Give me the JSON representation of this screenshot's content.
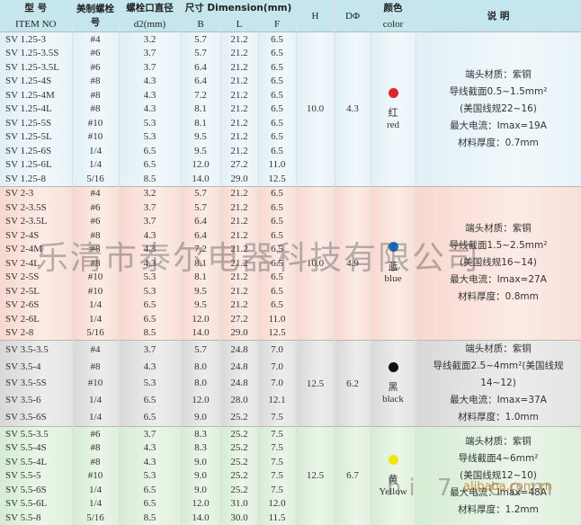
{
  "header": {
    "model_cn": "型 号",
    "model_en": "ITEM NO",
    "screw_cn": "美制螺栓 号",
    "bolt_cn": "螺栓口直径",
    "bolt_unit": "d2(mm)",
    "dim": "尺寸 Dimension(mm)",
    "col_b": "B",
    "col_l": "L",
    "col_f": "F",
    "col_h": "H",
    "col_d": "DΦ",
    "color_cn": "颜色",
    "color_en": "color",
    "desc": "说 明"
  },
  "groups": [
    {
      "rows": [
        [
          "SV 1.25-3",
          "#4",
          "3.2",
          "5.7",
          "21.2",
          "6.5"
        ],
        [
          "SV 1.25-3.5S",
          "#6",
          "3.7",
          "5.7",
          "21.2",
          "6.5"
        ],
        [
          "SV 1.25-3.5L",
          "#6",
          "3.7",
          "6.4",
          "21.2",
          "6.5"
        ],
        [
          "SV 1.25-4S",
          "#8",
          "4.3",
          "6.4",
          "21.2",
          "6.5"
        ],
        [
          "SV 1.25-4M",
          "#8",
          "4.3",
          "7.2",
          "21.2",
          "6.5"
        ],
        [
          "SV 1.25-4L",
          "#8",
          "4.3",
          "8.1",
          "21.2",
          "6.5"
        ],
        [
          "SV 1.25-5S",
          "#10",
          "5.3",
          "8.1",
          "21.2",
          "6.5"
        ],
        [
          "SV 1.25-5L",
          "#10",
          "5.3",
          "9.5",
          "21.2",
          "6.5"
        ],
        [
          "SV 1.25-6S",
          "1/4",
          "6.5",
          "9.5",
          "21.2",
          "6.5"
        ],
        [
          "SV 1.25-6L",
          "1/4",
          "6.5",
          "12.0",
          "27.2",
          "11.0"
        ],
        [
          "SV 1.25-8",
          "5/16",
          "8.5",
          "14.0",
          "29.0",
          "12.5"
        ]
      ],
      "h": "10.0",
      "d": "4.3",
      "color_cn": "红",
      "color_en": "red",
      "dot": "#e0262a",
      "desc": [
        "端头材质：紫铜",
        "导线截面0.5~1.5mm²",
        "(美国线规22~16)",
        "最大电流：Imax=19A",
        "材料厚度：0.7mm"
      ]
    },
    {
      "rows": [
        [
          "SV 2-3",
          "#4",
          "3.2",
          "5.7",
          "21.2",
          "6.5"
        ],
        [
          "SV 2-3.5S",
          "#6",
          "3.7",
          "5.7",
          "21.2",
          "6.5"
        ],
        [
          "SV 2-3.5L",
          "#6",
          "3.7",
          "6.4",
          "21.2",
          "6.5"
        ],
        [
          "SV 2-4S",
          "#8",
          "4.3",
          "6.4",
          "21.2",
          "6.5"
        ],
        [
          "SV 2-4M",
          "#8",
          "4.3",
          "7.2",
          "21.2",
          "6.5"
        ],
        [
          "SV 2-4L",
          "#8",
          "4.3",
          "8.1",
          "21.2",
          "6.5"
        ],
        [
          "SV 2-5S",
          "#10",
          "5.3",
          "8.1",
          "21.2",
          "6.5"
        ],
        [
          "SV 2-5L",
          "#10",
          "5.3",
          "9.5",
          "21.2",
          "6.5"
        ],
        [
          "SV 2-6S",
          "1/4",
          "6.5",
          "9.5",
          "21.2",
          "6.5"
        ],
        [
          "SV 2-6L",
          "1/4",
          "6.5",
          "12.0",
          "27.2",
          "11.0"
        ],
        [
          "SV 2-8",
          "5/16",
          "8.5",
          "14.0",
          "29.0",
          "12.5"
        ]
      ],
      "h": "10.0",
      "d": "4.9",
      "color_cn": "蓝",
      "color_en": "blue",
      "dot": "#1a6fc4",
      "desc": [
        "端头材质：紫铜",
        "导线截面1.5~2.5mm²",
        "(美国线规16~14)",
        "最大电流：Imax=27A",
        "材料厚度：0.8mm"
      ]
    },
    {
      "rows": [
        [
          "SV 3.5-3.5",
          "#4",
          "3.7",
          "5.7",
          "24.8",
          "7.0"
        ],
        [
          "SV 3.5-4",
          "#8",
          "4.3",
          "8.0",
          "24.8",
          "7.0"
        ],
        [
          "SV 3.5-5S",
          "#10",
          "5.3",
          "8.0",
          "24.8",
          "7.0"
        ],
        [
          "SV 3.5-6",
          "1/4",
          "6.5",
          "12.0",
          "28.0",
          "12.1"
        ],
        [
          "SV 3.5-6S",
          "1/4",
          "6.5",
          "9.0",
          "25.2",
          "7.5"
        ]
      ],
      "h": "12.5",
      "d": "6.2",
      "color_cn": "黑",
      "color_en": "black",
      "dot": "#111111",
      "desc": [
        "端头材质：紫铜",
        "导线截面2.5~4mm²(美国线规14~12)",
        "最大电流：Imax=37A",
        "材料厚度：1.0mm"
      ]
    },
    {
      "rows": [
        [
          "SV 5.5-3.5",
          "#6",
          "3.7",
          "8.3",
          "25.2",
          "7.5"
        ],
        [
          "SV 5.5-4S",
          "#8",
          "4.3",
          "8.3",
          "25.2",
          "7.5"
        ],
        [
          "SV 5.5-4L",
          "#8",
          "4.3",
          "9.0",
          "25.2",
          "7.5"
        ],
        [
          "SV 5.5-5",
          "#10",
          "5.3",
          "9.0",
          "25.2",
          "7.5"
        ],
        [
          "SV 5.5-6S",
          "1/4",
          "6.5",
          "9.0",
          "25.2",
          "7.5"
        ],
        [
          "SV 5.5-6L",
          "1/4",
          "6.5",
          "12.0",
          "31.0",
          "12.0"
        ],
        [
          "SV 5.5-8",
          "5/16",
          "8.5",
          "14.0",
          "30.0",
          "11.5"
        ]
      ],
      "h": "12.5",
      "d": "6.7",
      "color_cn": "黄",
      "color_en": "Yellow",
      "dot": "#f2e500",
      "desc": [
        "端头材质：紫铜",
        "导线截面4~6mm²",
        "(美国线规12~10)",
        "最大电流：Imax=48A",
        "材料厚度：1.2mm"
      ]
    }
  ],
  "watermark": "乐清市泰尔电器科技有限公司",
  "watermark_url": "hi  7 .com",
  "watermark_small": "alibaba.com.cn"
}
